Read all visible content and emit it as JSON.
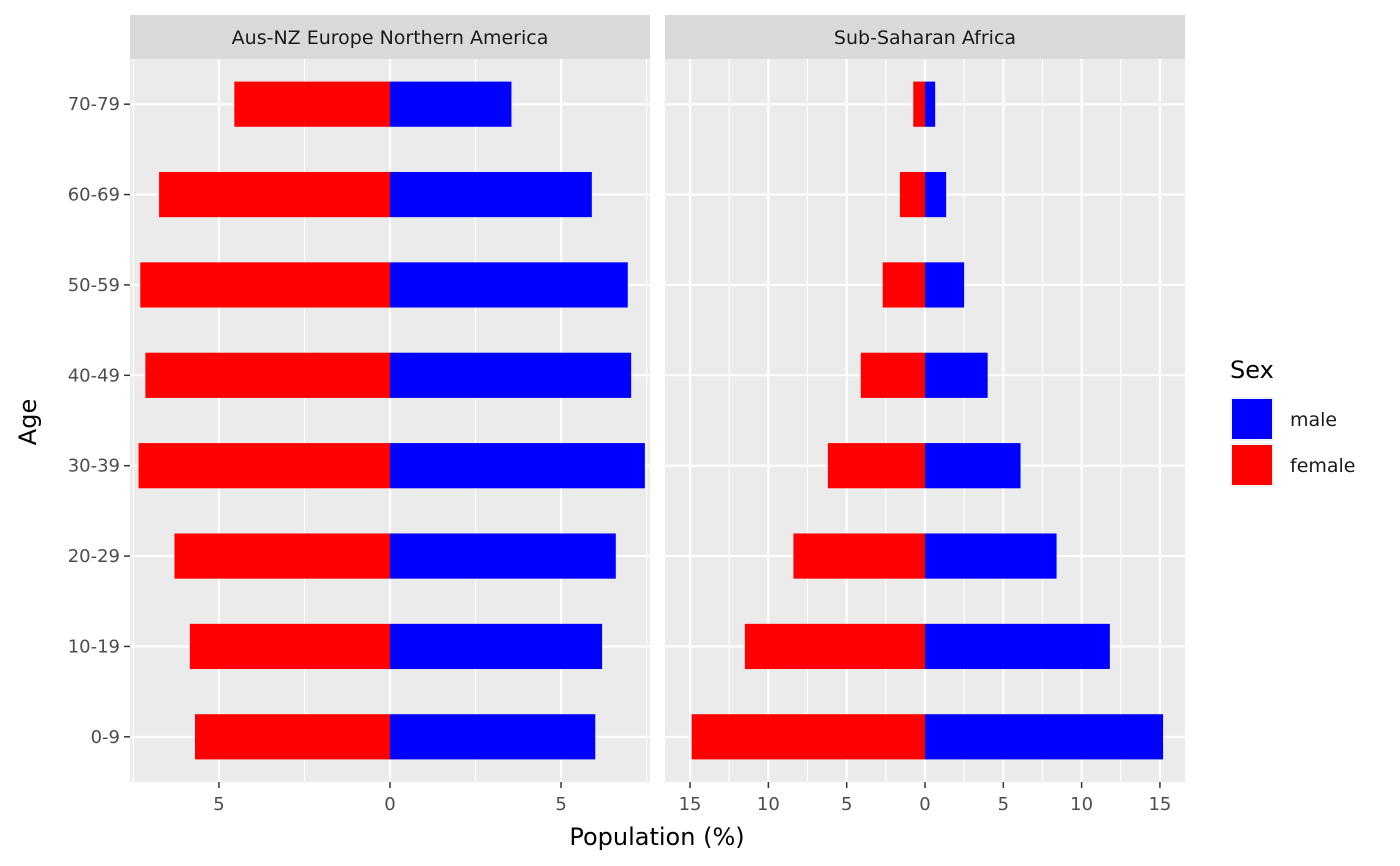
{
  "chart_data": {
    "type": "bar",
    "orientation": "horizontal",
    "chart_style": "population-pyramid",
    "xlabel": "Population (%)",
    "ylabel": "Age",
    "categories": [
      "0-9",
      "10-19",
      "20-29",
      "30-39",
      "40-49",
      "50-59",
      "60-69",
      "70-79"
    ],
    "legend": {
      "title": "Sex",
      "position": "right",
      "entries": [
        {
          "label": "male",
          "color": "#0000ff"
        },
        {
          "label": "female",
          "color": "#ff0000"
        }
      ]
    },
    "panels": [
      {
        "title": "Aus-NZ Europe Northern America",
        "xlim": [
          -7.6,
          7.6
        ],
        "x_ticks": [
          -5,
          0,
          5
        ],
        "x_tick_labels": [
          "5",
          "0",
          "5"
        ],
        "series": [
          {
            "name": "male",
            "values": [
              6.0,
              6.2,
              6.6,
              7.45,
              7.05,
              6.95,
              5.9,
              3.55
            ]
          },
          {
            "name": "female",
            "values": [
              5.7,
              5.85,
              6.3,
              7.35,
              7.15,
              7.3,
              6.75,
              4.55
            ]
          }
        ]
      },
      {
        "title": "Sub-Saharan Africa",
        "xlim": [
          -16.6,
          16.6
        ],
        "x_ticks": [
          -15,
          -10,
          -5,
          0,
          5,
          10,
          15
        ],
        "x_tick_labels": [
          "15",
          "10",
          "5",
          "0",
          "5",
          "10",
          "15"
        ],
        "series": [
          {
            "name": "male",
            "values": [
              15.2,
              11.8,
              8.4,
              6.1,
              4.0,
              2.5,
              1.35,
              0.65
            ]
          },
          {
            "name": "female",
            "values": [
              14.9,
              11.5,
              8.4,
              6.2,
              4.1,
              2.7,
              1.6,
              0.75
            ]
          }
        ]
      }
    ]
  }
}
